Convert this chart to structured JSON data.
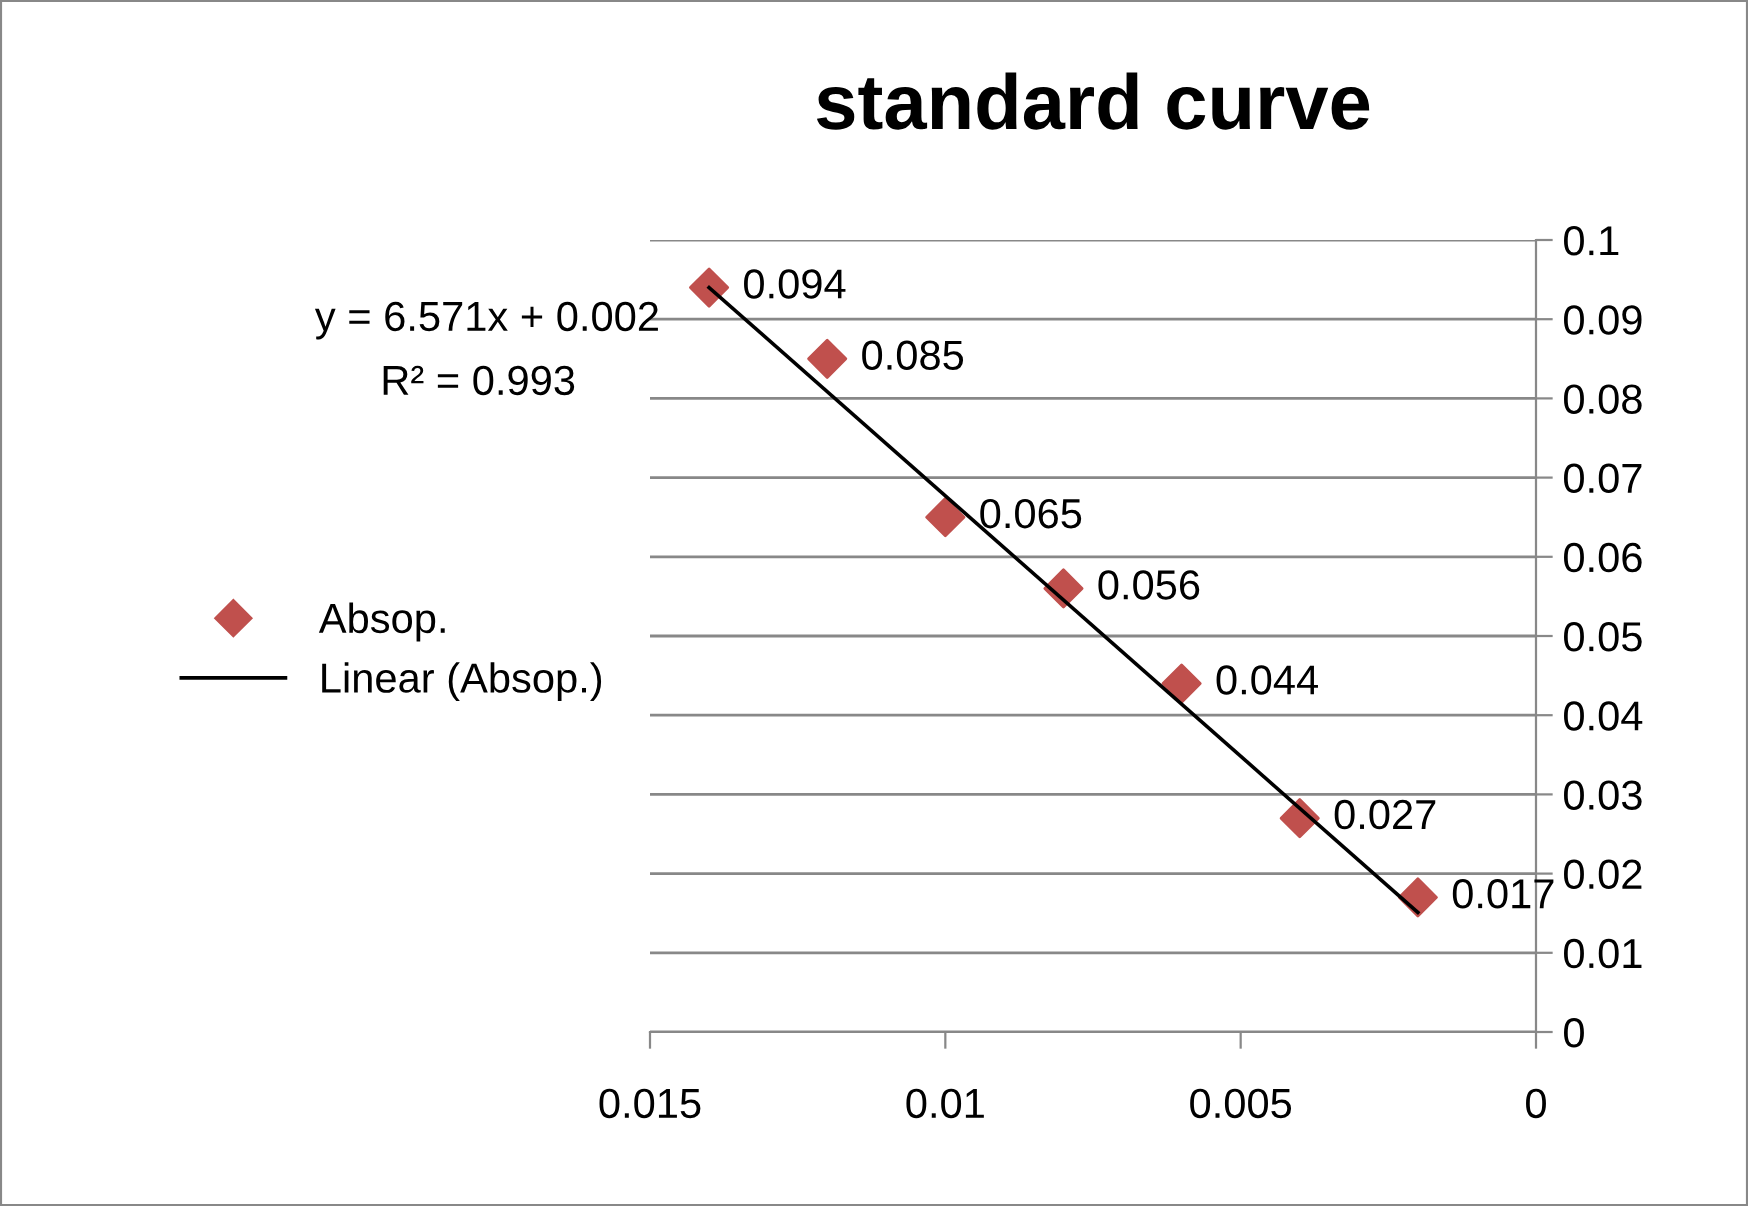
{
  "chart_data": {
    "type": "scatter",
    "title": "standard curve",
    "xlim": [
      0.015,
      0
    ],
    "xticks": [
      0.015,
      0.01,
      0.005,
      0
    ],
    "ylim": [
      0,
      0.1
    ],
    "yticks": [
      0,
      0.01,
      0.02,
      0.03,
      0.04,
      0.05,
      0.06,
      0.07,
      0.08,
      0.09,
      0.1
    ],
    "grid": "y",
    "legend": "left",
    "series": [
      {
        "name": "Absop.",
        "color": "#c0504d",
        "marker": "diamond",
        "x": [
          0.014,
          0.012,
          0.01,
          0.008,
          0.006,
          0.004,
          0.002
        ],
        "values": [
          0.094,
          0.085,
          0.065,
          0.056,
          0.044,
          0.027,
          0.017
        ],
        "value_labels": [
          "0.094",
          "0.085",
          "0.065",
          "0.056",
          "0.044",
          "0.027",
          "0.017"
        ]
      },
      {
        "name": "Linear (Absop.)",
        "type": "line",
        "color": "#000000",
        "line_style": "solid",
        "marker": "none",
        "x": [
          0.014,
          0.002
        ],
        "values": [
          0.094,
          0.0151
        ]
      }
    ],
    "annotations": [
      "y = 6.571x + 0.002",
      "R² = 0.993"
    ]
  }
}
